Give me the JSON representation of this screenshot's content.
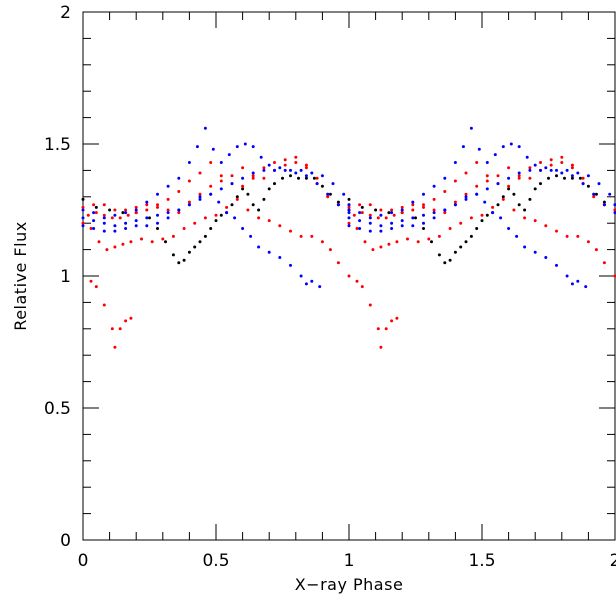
{
  "chart_data": {
    "type": "scatter",
    "title": "",
    "xlabel": "X−ray Phase",
    "ylabel": "Relative Flux",
    "xlim": [
      0,
      2
    ],
    "ylim": [
      0,
      2
    ],
    "x_major_ticks": [
      0,
      0.5,
      1,
      1.5,
      2
    ],
    "x_tick_labels": [
      "0",
      "0.5",
      "1",
      "1.5",
      "2"
    ],
    "x_minor_step": 0.1,
    "y_major_ticks": [
      0,
      0.5,
      1,
      1.5,
      2
    ],
    "y_tick_labels": [
      "0",
      "0.5",
      "1",
      "1.5",
      "2"
    ],
    "y_minor_step": 0.1,
    "grid": false,
    "legend": "none",
    "note": "Each series is plotted twice (phase 0-1 repeated at phase 1-2).",
    "series": [
      {
        "color": "#000000",
        "x": [
          0.0,
          0.05,
          0.1,
          0.15,
          0.2,
          0.25,
          0.28,
          0.31,
          0.34,
          0.36,
          0.38,
          0.4,
          0.42,
          0.44,
          0.46,
          0.48,
          0.5,
          0.52,
          0.54,
          0.56,
          0.58,
          0.6,
          0.62,
          0.64,
          0.66,
          0.68,
          0.7,
          0.72,
          0.75,
          0.78,
          0.81,
          0.84,
          0.87,
          0.9,
          0.93,
          0.96,
          1.0
        ],
        "y": [
          1.29,
          1.26,
          1.25,
          1.24,
          1.24,
          1.22,
          1.18,
          1.13,
          1.08,
          1.05,
          1.06,
          1.09,
          1.11,
          1.13,
          1.15,
          1.18,
          1.21,
          1.23,
          1.24,
          1.27,
          1.3,
          1.33,
          1.31,
          1.27,
          1.25,
          1.29,
          1.33,
          1.35,
          1.37,
          1.38,
          1.37,
          1.37,
          1.37,
          1.34,
          1.31,
          1.28,
          1.27
        ]
      },
      {
        "color": "#ff0000",
        "x": [
          0.0,
          0.04,
          0.08,
          0.12,
          0.16,
          0.2,
          0.24,
          0.28,
          0.32,
          0.36,
          0.4,
          0.44,
          0.48,
          0.52,
          0.56,
          0.6,
          0.64,
          0.68,
          0.72,
          0.76,
          0.8,
          0.84,
          0.88,
          0.92,
          0.96,
          1.0,
          0.02,
          0.05,
          0.08,
          0.11,
          0.14,
          0.17,
          0.2,
          0.24,
          0.28,
          0.32,
          0.36,
          0.4,
          0.44,
          0.48,
          0.52,
          0.56,
          0.6,
          0.64,
          0.68,
          0.72,
          0.76,
          0.8,
          0.84,
          0.88,
          0.92,
          0.96,
          1.0,
          0.0,
          0.03,
          0.06,
          0.09,
          0.12,
          0.15,
          0.18,
          0.22,
          0.26,
          0.3,
          0.34,
          0.38,
          0.42,
          0.46,
          0.5,
          0.54,
          0.58,
          0.62,
          0.66,
          0.7,
          0.74,
          0.78,
          0.82,
          0.86,
          0.9,
          0.93,
          0.96,
          1.0,
          0.03,
          0.05,
          0.08,
          0.11,
          0.12,
          0.14,
          0.16,
          0.18
        ],
        "y": [
          1.26,
          1.27,
          1.27,
          1.25,
          1.25,
          1.26,
          1.27,
          1.27,
          1.25,
          1.24,
          1.28,
          1.31,
          1.34,
          1.36,
          1.38,
          1.41,
          1.37,
          1.37,
          1.4,
          1.42,
          1.43,
          1.41,
          1.35,
          1.31,
          1.27,
          1.25,
          1.23,
          1.24,
          1.23,
          1.22,
          1.22,
          1.23,
          1.24,
          1.25,
          1.26,
          1.29,
          1.32,
          1.36,
          1.39,
          1.43,
          1.38,
          1.35,
          1.34,
          1.38,
          1.41,
          1.43,
          1.44,
          1.45,
          1.42,
          1.37,
          1.3,
          1.27,
          1.25,
          1.2,
          1.18,
          1.13,
          1.1,
          1.11,
          1.12,
          1.13,
          1.14,
          1.13,
          1.14,
          1.15,
          1.18,
          1.2,
          1.22,
          1.23,
          1.26,
          1.29,
          1.25,
          1.22,
          1.21,
          1.19,
          1.17,
          1.15,
          1.15,
          1.13,
          1.1,
          1.05,
          1.0,
          0.98,
          0.96,
          0.89,
          0.8,
          0.73,
          0.8,
          0.83,
          0.84
        ]
      },
      {
        "color": "#0000ff",
        "x": [
          0.0,
          0.04,
          0.08,
          0.12,
          0.16,
          0.2,
          0.24,
          0.28,
          0.32,
          0.36,
          0.4,
          0.43,
          0.46,
          0.49,
          0.52,
          0.55,
          0.58,
          0.61,
          0.64,
          0.67,
          0.7,
          0.74,
          0.78,
          0.82,
          0.86,
          0.9,
          0.94,
          0.98,
          1.0,
          0.0,
          0.04,
          0.08,
          0.12,
          0.16,
          0.2,
          0.24,
          0.28,
          0.32,
          0.36,
          0.4,
          0.44,
          0.48,
          0.52,
          0.56,
          0.6,
          0.64,
          0.68,
          0.72,
          0.76,
          0.8,
          0.84,
          0.88,
          0.92,
          0.96,
          1.0,
          0.0,
          0.04,
          0.08,
          0.12,
          0.16,
          0.2,
          0.24,
          0.28,
          0.32,
          0.36,
          0.4,
          0.44,
          0.48,
          0.51,
          0.54,
          0.57,
          0.6,
          0.63,
          0.66,
          0.7,
          0.74,
          0.78,
          0.82,
          0.84,
          0.86,
          0.89
        ],
        "y": [
          1.25,
          1.24,
          1.22,
          1.23,
          1.24,
          1.25,
          1.28,
          1.31,
          1.34,
          1.37,
          1.43,
          1.49,
          1.56,
          1.48,
          1.43,
          1.46,
          1.49,
          1.5,
          1.49,
          1.45,
          1.42,
          1.41,
          1.4,
          1.4,
          1.39,
          1.38,
          1.35,
          1.31,
          1.27,
          1.22,
          1.21,
          1.2,
          1.19,
          1.2,
          1.21,
          1.22,
          1.23,
          1.24,
          1.25,
          1.27,
          1.29,
          1.31,
          1.33,
          1.35,
          1.37,
          1.39,
          1.4,
          1.4,
          1.4,
          1.39,
          1.38,
          1.35,
          1.31,
          1.27,
          1.24,
          1.19,
          1.18,
          1.17,
          1.17,
          1.18,
          1.19,
          1.19,
          1.2,
          1.22,
          1.25,
          1.27,
          1.3,
          1.31,
          1.28,
          1.24,
          1.22,
          1.18,
          1.15,
          1.11,
          1.09,
          1.07,
          1.04,
          1.0,
          0.97,
          0.98,
          0.96
        ]
      }
    ]
  }
}
